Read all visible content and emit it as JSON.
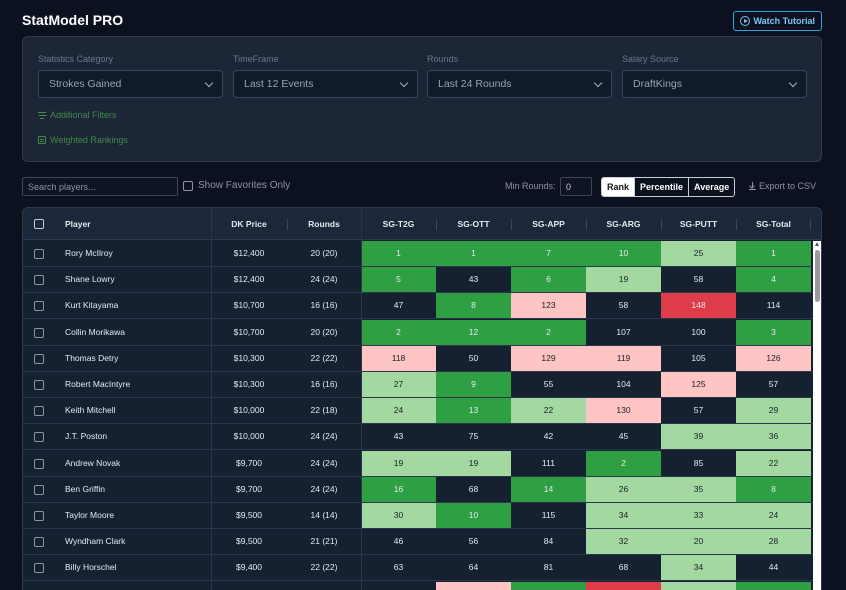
{
  "app": {
    "title": "StatModel PRO",
    "tutorial_label": "Watch Tutorial"
  },
  "filters": [
    {
      "label": "Statistics Category",
      "value": "Strokes Gained"
    },
    {
      "label": "TimeFrame",
      "value": "Last 12 Events"
    },
    {
      "label": "Rounds",
      "value": "Last 24 Rounds"
    },
    {
      "label": "Salary Source",
      "value": "DraftKings"
    }
  ],
  "links": {
    "additional_filters": "Additional Filters",
    "weighted_rankings": "Weighted Rankings"
  },
  "toolbar": {
    "search_placeholder": "Search players...",
    "favorites_label": "Show Favorites Only",
    "min_rounds_label": "Min Rounds:",
    "min_rounds_value": "0",
    "views": [
      "Rank",
      "Percentile",
      "Average"
    ],
    "export_label": "Export to CSV"
  },
  "colors": {
    "dark_green": "#2ea043",
    "light_green": "#a3d9a0",
    "pink": "#ffc4c4",
    "red": "#de3c4b",
    "neutral": "#152131"
  },
  "table": {
    "columns": [
      "Player",
      "DK Price",
      "Rounds",
      "SG-T2G",
      "SG-OTT",
      "SG-APP",
      "SG-ARG",
      "SG-PUTT",
      "SG-Total"
    ],
    "rows": [
      {
        "player": "Rory McIlroy",
        "price": "$12,400",
        "rounds": "20 (20)",
        "stats": [
          "1",
          "1",
          "7",
          "10",
          "25",
          "1"
        ],
        "shade": [
          "dg",
          "dg",
          "dg",
          "dg",
          "lg",
          "dg"
        ]
      },
      {
        "player": "Shane Lowry",
        "price": "$12,400",
        "rounds": "24 (24)",
        "stats": [
          "5",
          "43",
          "6",
          "19",
          "58",
          "4"
        ],
        "shade": [
          "dg",
          "n",
          "dg",
          "lg",
          "n",
          "dg"
        ]
      },
      {
        "player": "Kurt Kitayama",
        "price": "$10,700",
        "rounds": "16 (16)",
        "stats": [
          "47",
          "8",
          "123",
          "58",
          "148",
          "114"
        ],
        "shade": [
          "n",
          "dg",
          "pk",
          "n",
          "rd",
          "n"
        ]
      },
      {
        "player": "Collin Morikawa",
        "price": "$10,700",
        "rounds": "20 (20)",
        "stats": [
          "2",
          "12",
          "2",
          "107",
          "100",
          "3"
        ],
        "shade": [
          "dg",
          "dg",
          "dg",
          "n",
          "n",
          "dg"
        ]
      },
      {
        "player": "Thomas Detry",
        "price": "$10,300",
        "rounds": "22 (22)",
        "stats": [
          "118",
          "50",
          "129",
          "119",
          "105",
          "126"
        ],
        "shade": [
          "pk",
          "n",
          "pk",
          "pk",
          "n",
          "pk"
        ]
      },
      {
        "player": "Robert MacIntyre",
        "price": "$10,300",
        "rounds": "16 (16)",
        "stats": [
          "27",
          "9",
          "55",
          "104",
          "125",
          "57"
        ],
        "shade": [
          "lg",
          "dg",
          "n",
          "n",
          "pk",
          "n"
        ]
      },
      {
        "player": "Keith Mitchell",
        "price": "$10,000",
        "rounds": "22 (18)",
        "stats": [
          "24",
          "13",
          "22",
          "130",
          "57",
          "29"
        ],
        "shade": [
          "lg",
          "dg",
          "lg",
          "pk",
          "n",
          "lg"
        ]
      },
      {
        "player": "J.T. Poston",
        "price": "$10,000",
        "rounds": "24 (24)",
        "stats": [
          "43",
          "75",
          "42",
          "45",
          "39",
          "36"
        ],
        "shade": [
          "n",
          "n",
          "n",
          "n",
          "lg",
          "lg"
        ]
      },
      {
        "player": "Andrew Novak",
        "price": "$9,700",
        "rounds": "24 (24)",
        "stats": [
          "19",
          "19",
          "111",
          "2",
          "85",
          "22"
        ],
        "shade": [
          "lg",
          "lg",
          "n",
          "dg",
          "n",
          "lg"
        ]
      },
      {
        "player": "Ben Griffin",
        "price": "$9,700",
        "rounds": "24 (24)",
        "stats": [
          "16",
          "68",
          "14",
          "26",
          "35",
          "8"
        ],
        "shade": [
          "dg",
          "n",
          "dg",
          "lg",
          "lg",
          "dg"
        ]
      },
      {
        "player": "Taylor Moore",
        "price": "$9,500",
        "rounds": "14 (14)",
        "stats": [
          "30",
          "10",
          "115",
          "34",
          "33",
          "24"
        ],
        "shade": [
          "lg",
          "dg",
          "n",
          "lg",
          "lg",
          "lg"
        ]
      },
      {
        "player": "Wyndham Clark",
        "price": "$9,500",
        "rounds": "21 (21)",
        "stats": [
          "46",
          "56",
          "84",
          "32",
          "20",
          "28"
        ],
        "shade": [
          "n",
          "n",
          "n",
          "lg",
          "lg",
          "lg"
        ]
      },
      {
        "player": "Billy Horschel",
        "price": "$9,400",
        "rounds": "22 (22)",
        "stats": [
          "63",
          "64",
          "81",
          "68",
          "34",
          "44"
        ],
        "shade": [
          "n",
          "n",
          "n",
          "n",
          "lg",
          "n"
        ]
      }
    ],
    "partial_row_shade": [
      "n",
      "pk",
      "dg",
      "rd",
      "lg",
      "dg"
    ]
  }
}
